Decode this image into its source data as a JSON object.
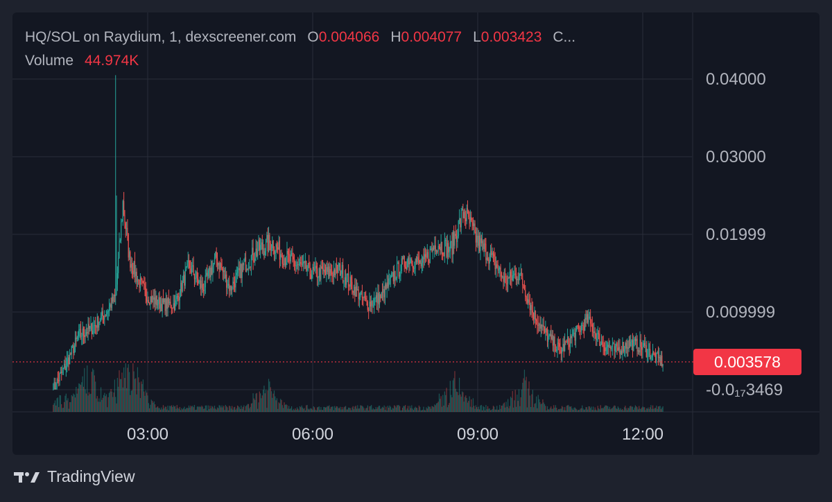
{
  "legend": {
    "symbol": "HQ/SOL on Raydium, 1, dexscreener.com",
    "open_label": "O",
    "open_value": "0.004066",
    "high_label": "H",
    "high_value": "0.004077",
    "low_label": "L",
    "low_value": "0.003423",
    "close_label": "C...",
    "volume_label": "Volume",
    "volume_value": "44.974K"
  },
  "price_axis": {
    "ticks": [
      "0.04000",
      "0.03000",
      "0.01999",
      "0.009999",
      "-0.0₁₇3469"
    ],
    "tick_values": [
      0.04,
      0.03,
      0.01999,
      0.009999,
      -3.469e-19
    ]
  },
  "time_axis": {
    "ticks": [
      "03:00",
      "06:00",
      "09:00",
      "12:00"
    ]
  },
  "last_price": {
    "label": "0.003578",
    "value": 0.003578
  },
  "footer": {
    "brand": "TradingView"
  },
  "colors": {
    "up": "#26a69a",
    "down": "#ef5350",
    "grid": "#2a2e39",
    "axis_text": "#b2b5be",
    "last_price": "#f23645",
    "background": "#131722"
  },
  "chart_data": {
    "type": "candlestick",
    "title": "HQ/SOL on Raydium, 1, dexscreener.com",
    "xlabel": "",
    "ylabel": "",
    "ylim": [
      -0.0045,
      0.044
    ],
    "x_range": [
      "01:15",
      "13:05"
    ],
    "series": [
      {
        "name": "HQ/SOL",
        "x": [
          "01:17",
          "01:30",
          "01:45",
          "02:00",
          "02:15",
          "02:25",
          "02:33",
          "02:40",
          "02:50",
          "03:00",
          "03:15",
          "03:30",
          "03:45",
          "04:00",
          "04:15",
          "04:30",
          "04:45",
          "05:00",
          "05:15",
          "05:30",
          "05:45",
          "06:00",
          "06:15",
          "06:30",
          "06:45",
          "07:00",
          "07:15",
          "07:30",
          "07:45",
          "08:00",
          "08:15",
          "08:30",
          "08:45",
          "09:00",
          "09:15",
          "09:30",
          "09:45",
          "10:00",
          "10:15",
          "10:30",
          "10:45",
          "11:00",
          "11:15",
          "11:30",
          "11:45",
          "12:00",
          "12:15",
          "12:22"
        ],
        "y": [
          0.0,
          0.003,
          0.007,
          0.008,
          0.01,
          0.012,
          0.024,
          0.017,
          0.014,
          0.012,
          0.011,
          0.011,
          0.016,
          0.013,
          0.017,
          0.013,
          0.016,
          0.018,
          0.019,
          0.017,
          0.016,
          0.015,
          0.015,
          0.0155,
          0.013,
          0.011,
          0.012,
          0.015,
          0.017,
          0.016,
          0.019,
          0.018,
          0.023,
          0.019,
          0.017,
          0.014,
          0.015,
          0.01,
          0.007,
          0.005,
          0.007,
          0.009,
          0.006,
          0.005,
          0.006,
          0.0055,
          0.004,
          0.003578
        ]
      }
    ],
    "volume_spike_times": [
      "01:55",
      "02:35",
      "02:45",
      "05:10",
      "08:35",
      "09:50"
    ]
  }
}
